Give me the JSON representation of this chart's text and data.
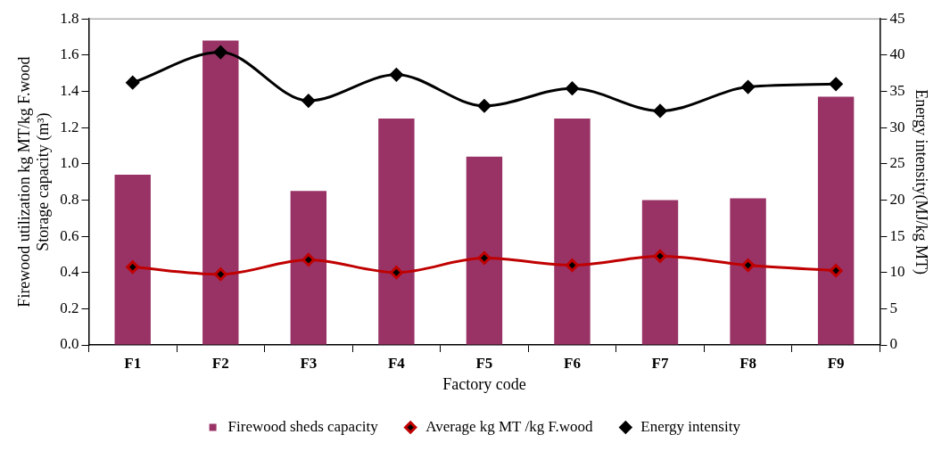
{
  "chart_data": {
    "type": "bar",
    "xlabel": "Factory code",
    "ylabel": "Firewood utilization kg MT/kg F.wood\nStorage capacity (m³)",
    "y2label": "Energy intensity(MJ/kg MT)",
    "categories": [
      "F1",
      "F2",
      "F3",
      "F4",
      "F5",
      "F6",
      "F7",
      "F8",
      "F9"
    ],
    "series": [
      {
        "name": "Firewood sheds capacity",
        "color": "#993366",
        "values": [
          0.94,
          1.68,
          0.85,
          1.25,
          1.04,
          1.25,
          0.8,
          0.81,
          1.37
        ]
      },
      {
        "name": "Average kg MT /kg F.wood",
        "type": "line",
        "color": "#c00000",
        "values": [
          0.43,
          0.39,
          0.47,
          0.4,
          0.48,
          0.44,
          0.49,
          0.44,
          0.41
        ]
      },
      {
        "name": "Energy intensity",
        "type": "line",
        "axis": "y2",
        "color": "#000000",
        "values": [
          36.2,
          40.4,
          33.7,
          37.3,
          33.0,
          35.4,
          32.3,
          35.6,
          36.0
        ]
      }
    ],
    "ylim": [
      0,
      1.8
    ],
    "yticks": [
      {
        "value": 0,
        "label": "0.0"
      },
      0.2,
      0.4,
      0.6,
      0.8,
      {
        "value": 1,
        "label": "1.0"
      },
      1.2,
      1.4,
      1.6,
      1.8
    ],
    "y2lim": [
      0,
      45
    ],
    "y2ticks": [
      0,
      5,
      10,
      15,
      20,
      25,
      30,
      35,
      40,
      45
    ],
    "marker": "diamond",
    "grid": false,
    "legend": "bottom"
  }
}
